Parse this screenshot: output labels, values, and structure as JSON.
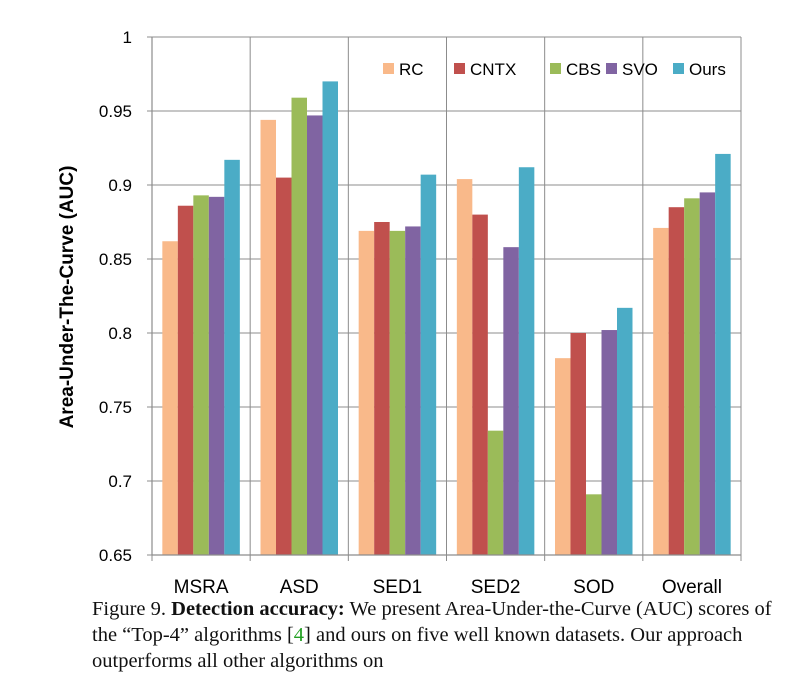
{
  "chart_data": {
    "type": "bar",
    "title": "",
    "xlabel": "",
    "ylabel": "Area-Under-The-Curve (AUC)",
    "ylim": [
      0.65,
      1
    ],
    "yticks": [
      "0.65",
      "0.7",
      "0.75",
      "0.8",
      "0.85",
      "0.9",
      "0.95",
      "1"
    ],
    "grid": true,
    "legend_position": "top-right",
    "categories": [
      "MSRA",
      "ASD",
      "SED1",
      "SED2",
      "SOD",
      "Overall"
    ],
    "series": [
      {
        "name": "RC",
        "color": "#f9b98a",
        "values": [
          0.862,
          0.944,
          0.869,
          0.904,
          0.783,
          0.871
        ]
      },
      {
        "name": "CNTX",
        "color": "#c0504d",
        "values": [
          0.886,
          0.905,
          0.875,
          0.88,
          0.8,
          0.885
        ]
      },
      {
        "name": "CBS",
        "color": "#9bbb59",
        "values": [
          0.893,
          0.959,
          0.869,
          0.734,
          0.691,
          0.891
        ]
      },
      {
        "name": "SVO",
        "color": "#8064a2",
        "values": [
          0.892,
          0.947,
          0.872,
          0.858,
          0.802,
          0.895
        ]
      },
      {
        "name": "Ours",
        "color": "#4bacc6",
        "values": [
          0.917,
          0.97,
          0.907,
          0.912,
          0.817,
          0.921
        ]
      }
    ]
  },
  "caption": {
    "label": "Figure 9.",
    "bold": "Detection accuracy:",
    "text_before_ref": "We present Area-Under-the-Curve (AUC) scores of the “Top-4” algorithms [",
    "ref": "4",
    "text_after_ref": "] and ours on five well known datasets. Our approach outperforms all other algorithms on"
  }
}
